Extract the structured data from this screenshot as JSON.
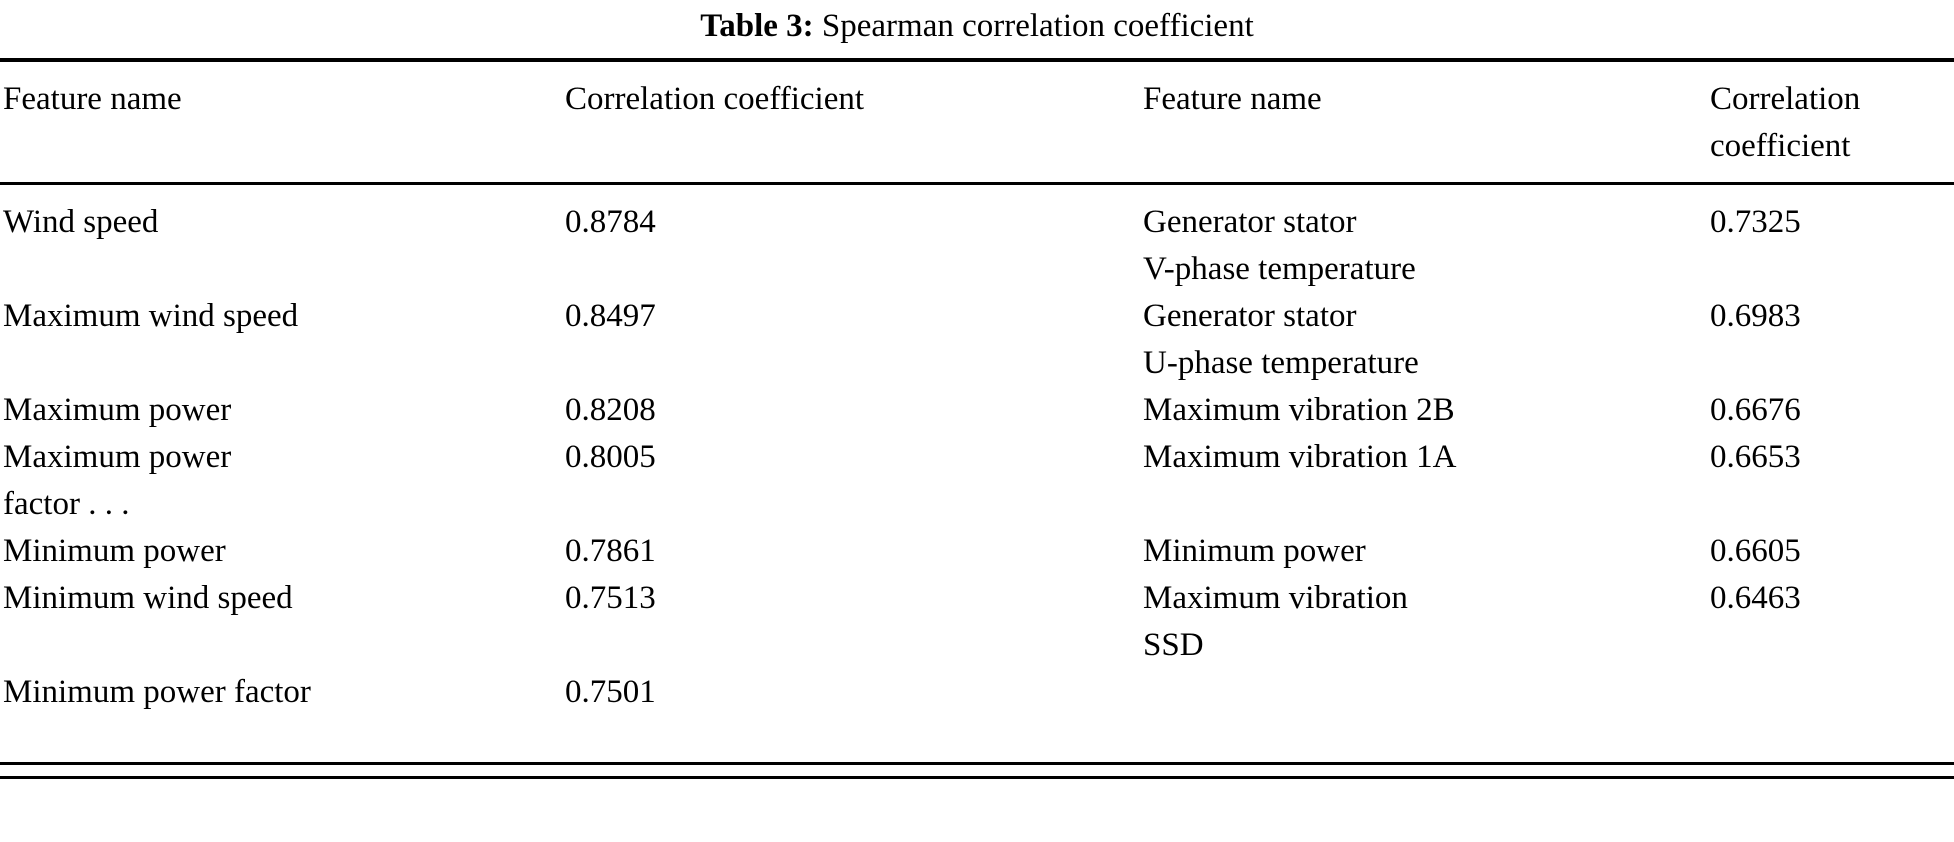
{
  "caption": {
    "label": "Table 3:",
    "text": "Spearman correlation coefficient"
  },
  "table": {
    "headers": {
      "c1": "Feature name",
      "c2": "Correlation coefficient",
      "c3": "Feature name",
      "c4": "Correlation\ncoefficient"
    },
    "rows": [
      {
        "c1": "Wind speed",
        "c2": "0.8784",
        "c3": "Generator stator\nV-phase temperature",
        "c4": "0.7325"
      },
      {
        "c1": "Maximum wind speed",
        "c2": "0.8497",
        "c3": "Generator stator\nU-phase temperature",
        "c4": "0.6983"
      },
      {
        "c1": "Maximum power",
        "c2": "0.8208",
        "c3": "Maximum vibration 2B",
        "c4": "0.6676"
      },
      {
        "c1": "Maximum power\nfactor . . .",
        "c2": "0.8005",
        "c3": "Maximum vibration 1A",
        "c4": "0.6653"
      },
      {
        "c1": "Minimum power",
        "c2": "0.7861",
        "c3": "Minimum power",
        "c4": "0.6605"
      },
      {
        "c1": "Minimum wind speed",
        "c2": "0.7513",
        "c3": "Maximum vibration\nSSD",
        "c4": "0.6463"
      },
      {
        "c1": "Minimum power factor",
        "c2": "0.7501",
        "c3": "",
        "c4": ""
      }
    ]
  }
}
